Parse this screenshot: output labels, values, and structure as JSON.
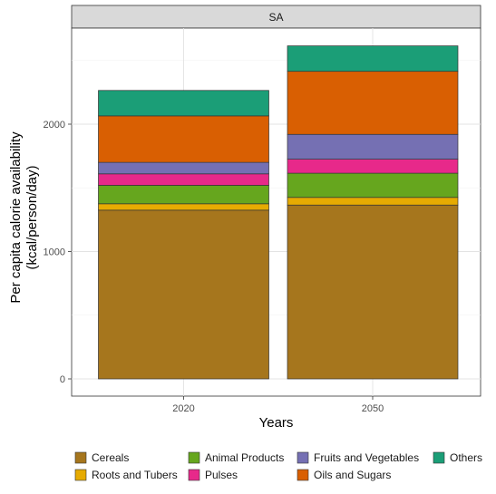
{
  "chart_data": {
    "type": "bar",
    "stacked": true,
    "facet_label": "SA",
    "categories": [
      "2020",
      "2050"
    ],
    "xlabel": "Years",
    "ylabel": "Per capita calorie availability",
    "ylabel_unit": "(kcal/person/day)",
    "ylim": [
      0,
      2700
    ],
    "yticks": [
      0,
      1000,
      2000
    ],
    "grid": true,
    "legend_position": "bottom",
    "series": [
      {
        "name": "Cereals",
        "color": "#a6761d",
        "values": [
          1325,
          1365
        ]
      },
      {
        "name": "Roots and Tubers",
        "color": "#e6ab02",
        "values": [
          50,
          60
        ]
      },
      {
        "name": "Animal Products",
        "color": "#66a61e",
        "values": [
          145,
          190
        ]
      },
      {
        "name": "Pulses",
        "color": "#e7298a",
        "values": [
          90,
          110
        ]
      },
      {
        "name": "Fruits and Vegetables",
        "color": "#7570b3",
        "values": [
          90,
          195
        ]
      },
      {
        "name": "Oils and Sugars",
        "color": "#d95f02",
        "values": [
          365,
          495
        ]
      },
      {
        "name": "Others",
        "color": "#1b9e77",
        "values": [
          200,
          200
        ]
      }
    ],
    "legend_order": [
      "Cereals",
      "Animal Products",
      "Fruits and Vegetables",
      "Others",
      "Roots and Tubers",
      "Pulses",
      "Oils and Sugars"
    ]
  }
}
